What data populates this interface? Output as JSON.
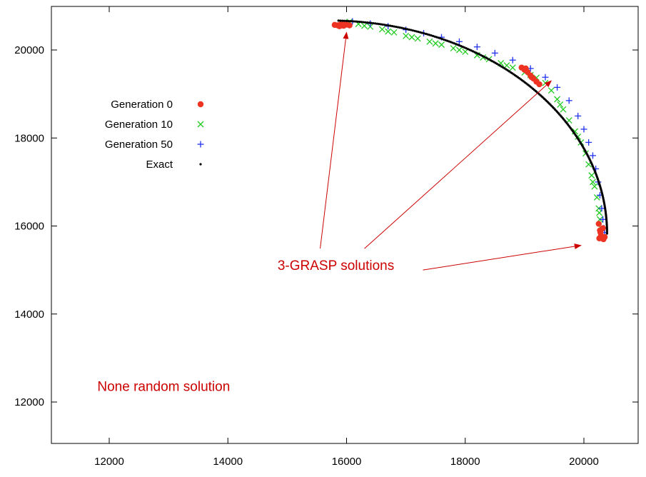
{
  "chart_data": {
    "type": "scatter",
    "title": "",
    "xlabel": "",
    "ylabel": "",
    "xlim": [
      11000,
      21000
    ],
    "ylim": [
      11000,
      21000
    ],
    "x_ticks": [
      12000,
      14000,
      16000,
      18000,
      20000
    ],
    "y_ticks": [
      12000,
      14000,
      16000,
      18000,
      20000
    ],
    "x_tick_labels": [
      "12000",
      "14000",
      "16000",
      "18000",
      "20000"
    ],
    "y_tick_labels": [
      "12000",
      "14000",
      "16000",
      "18000",
      "20000"
    ],
    "grid": false,
    "legend_position": "left",
    "series": [
      {
        "name": "Generation 0",
        "marker": "circle",
        "color": "#ee3322",
        "points": [
          [
            15800,
            20570
          ],
          [
            15850,
            20560
          ],
          [
            15900,
            20580
          ],
          [
            15950,
            20550
          ],
          [
            16000,
            20575
          ],
          [
            16050,
            20560
          ],
          [
            15880,
            20540
          ],
          [
            15960,
            20590
          ],
          [
            18950,
            19600
          ],
          [
            19000,
            19550
          ],
          [
            19050,
            19500
          ],
          [
            19100,
            19420
          ],
          [
            19150,
            19350
          ],
          [
            19200,
            19280
          ],
          [
            19250,
            19220
          ],
          [
            19020,
            19580
          ],
          [
            19120,
            19380
          ],
          [
            20250,
            16050
          ],
          [
            20270,
            15900
          ],
          [
            20290,
            15780
          ],
          [
            20310,
            15720
          ],
          [
            20330,
            15700
          ],
          [
            20350,
            15750
          ],
          [
            20280,
            15850
          ],
          [
            20320,
            15950
          ],
          [
            20260,
            15720
          ]
        ]
      },
      {
        "name": "Generation 10",
        "marker": "x",
        "color": "#22cc22",
        "points": [
          [
            16050,
            20640
          ],
          [
            16200,
            20590
          ],
          [
            16400,
            20530
          ],
          [
            16600,
            20470
          ],
          [
            16800,
            20400
          ],
          [
            17000,
            20320
          ],
          [
            17200,
            20260
          ],
          [
            17400,
            20190
          ],
          [
            17600,
            20120
          ],
          [
            17800,
            20040
          ],
          [
            18000,
            19960
          ],
          [
            18200,
            19880
          ],
          [
            18400,
            19790
          ],
          [
            18600,
            19700
          ],
          [
            18800,
            19600
          ],
          [
            19000,
            19490
          ],
          [
            19200,
            19370
          ],
          [
            19350,
            19250
          ],
          [
            19450,
            19080
          ],
          [
            19550,
            18880
          ],
          [
            19650,
            18650
          ],
          [
            19750,
            18400
          ],
          [
            19850,
            18150
          ],
          [
            19950,
            17900
          ],
          [
            20030,
            17650
          ],
          [
            20080,
            17400
          ],
          [
            20130,
            17150
          ],
          [
            20180,
            16900
          ],
          [
            20220,
            16650
          ],
          [
            20250,
            16400
          ],
          [
            20270,
            16150
          ],
          [
            20290,
            15950
          ],
          [
            16300,
            20550
          ],
          [
            16700,
            20420
          ],
          [
            17100,
            20290
          ],
          [
            17500,
            20150
          ],
          [
            17900,
            20000
          ],
          [
            18300,
            19830
          ],
          [
            18700,
            19650
          ],
          [
            19100,
            19430
          ],
          [
            19600,
            18760
          ],
          [
            19900,
            18030
          ],
          [
            20150,
            17000
          ],
          [
            20260,
            16300
          ]
        ]
      },
      {
        "name": "Generation 50",
        "marker": "plus",
        "color": "#2233ee",
        "points": [
          [
            16100,
            20650
          ],
          [
            16400,
            20600
          ],
          [
            16700,
            20540
          ],
          [
            17000,
            20460
          ],
          [
            17300,
            20380
          ],
          [
            17600,
            20290
          ],
          [
            17900,
            20190
          ],
          [
            18200,
            20070
          ],
          [
            18500,
            19930
          ],
          [
            18800,
            19770
          ],
          [
            19100,
            19580
          ],
          [
            19350,
            19380
          ],
          [
            19550,
            19150
          ],
          [
            19750,
            18850
          ],
          [
            19900,
            18500
          ],
          [
            20000,
            18200
          ],
          [
            20080,
            17900
          ],
          [
            20150,
            17600
          ],
          [
            20200,
            17300
          ],
          [
            20240,
            17000
          ],
          [
            20270,
            16700
          ],
          [
            20300,
            16400
          ],
          [
            20320,
            16150
          ],
          [
            20340,
            15950
          ],
          [
            20350,
            15850
          ]
        ]
      },
      {
        "name": "Exact",
        "marker": "dot",
        "color": "#000000",
        "curve": "quarter-ellipse",
        "center": [
          15700,
          15830
        ],
        "radii": [
          4690,
          4840
        ],
        "angle_range_deg": [
          0,
          88
        ]
      }
    ],
    "annotations": [
      {
        "text": "3-GRASP solutions",
        "color": "#cc0000",
        "at": [
          15820,
          15000
        ],
        "arrows_to": [
          [
            16000,
            20400
          ],
          [
            19450,
            19300
          ],
          [
            19950,
            15560
          ]
        ]
      },
      {
        "text": "None random solution",
        "color": "#cc0000",
        "at": [
          11800,
          12250
        ]
      }
    ]
  }
}
